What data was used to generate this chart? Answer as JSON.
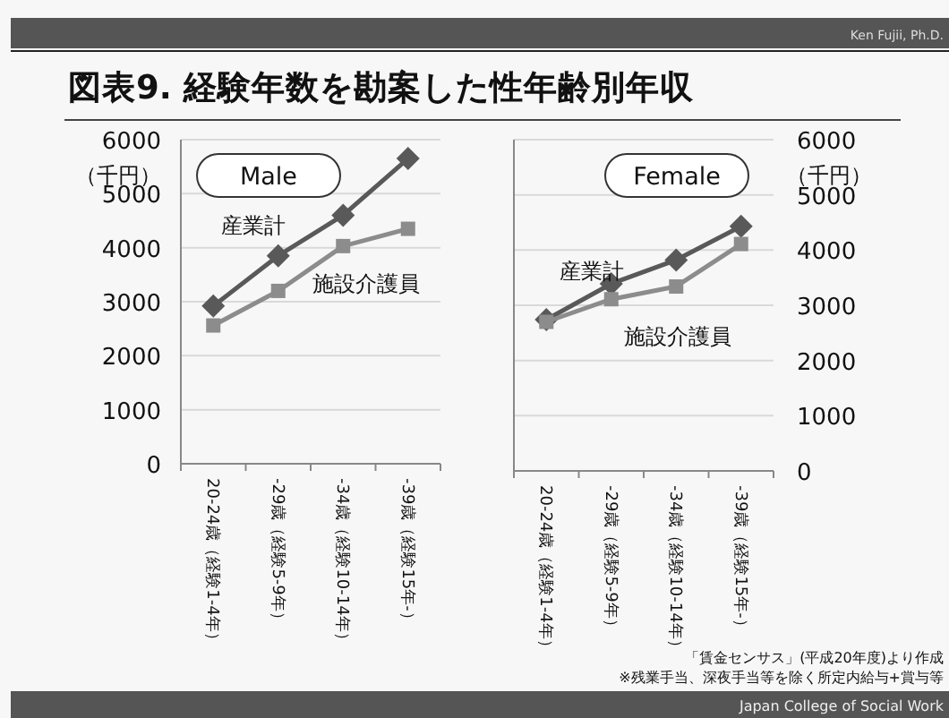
{
  "chart_data": [
    {
      "type": "line",
      "title": "図表9. 経験年数を勘案した性年齢別年収",
      "subtitle": "Male",
      "ylabel": "（千円）",
      "categories": [
        "20-24歳（経験1-4年）",
        "-29歳（経験5-9年）",
        "-34歳（経験10-14年）",
        "-39歳（経験15年-）"
      ],
      "series": [
        {
          "name": "産業計",
          "color": "#595959",
          "marker": "diamond",
          "values": [
            2920,
            3850,
            4600,
            5650
          ]
        },
        {
          "name": "施設介護員",
          "color": "#8c8c8c",
          "marker": "square",
          "values": [
            2560,
            3200,
            4030,
            4350
          ]
        }
      ],
      "ylim": [
        0,
        6000
      ],
      "yticks": [
        0,
        1000,
        2000,
        3000,
        4000,
        5000,
        6000
      ],
      "grid": "y",
      "annotations": [
        "Ken Fujii, Ph.D."
      ]
    },
    {
      "type": "line",
      "subtitle": "Female",
      "ylabel": "（千円）",
      "categories": [
        "20-24歳（経験1-4年）",
        "-29歳（経験5-9年）",
        "-34歳（経験10-14年）",
        "-39歳（経験15年-）"
      ],
      "series": [
        {
          "name": "産業計",
          "color": "#595959",
          "marker": "diamond",
          "values": [
            2740,
            3390,
            3820,
            4430
          ]
        },
        {
          "name": "施設介護員",
          "color": "#8c8c8c",
          "marker": "square",
          "values": [
            2700,
            3110,
            3340,
            4110
          ]
        }
      ],
      "ylim": [
        0,
        6000
      ],
      "yticks": [
        0,
        1000,
        2000,
        3000,
        4000,
        5000,
        6000
      ],
      "grid": "y",
      "annotations": [
        "「賃金センサス」(平成20年度)より作成",
        "※残業手当、深夜手当等を除く所定内給与+賞与等",
        "Japan College of Social Work"
      ]
    }
  ]
}
